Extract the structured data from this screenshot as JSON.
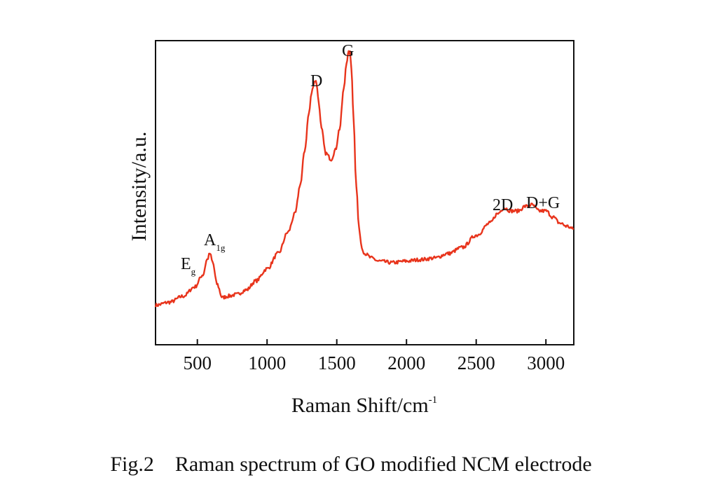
{
  "caption": "Fig.2    Raman spectrum of GO modified NCM electrode",
  "chart_data": {
    "type": "line",
    "xlabel": "Raman Shift/cm",
    "xlabel_sup": "-1",
    "ylabel": "Intensity/a.u.",
    "xlim": [
      200,
      3200
    ],
    "ylim": [
      0,
      1.0
    ],
    "y_ticks_shown": false,
    "x_ticks": [
      500,
      1000,
      1500,
      2000,
      2500,
      3000
    ],
    "color": "#e8341c",
    "grid": false,
    "legend": "none",
    "series": [
      {
        "x": [
          200,
          300,
          400,
          480,
          540,
          570,
          590,
          610,
          640,
          680,
          720,
          780,
          850,
          920,
          1000,
          1080,
          1150,
          1200,
          1240,
          1270,
          1300,
          1320,
          1335,
          1345,
          1355,
          1370,
          1390,
          1420,
          1460,
          1490,
          1520,
          1550,
          1570,
          1585,
          1595,
          1605,
          1620,
          1640,
          1660,
          1680,
          1700,
          1750,
          1800,
          1900,
          2000,
          2100,
          2200,
          2300,
          2400,
          2500,
          2600,
          2650,
          2700,
          2750,
          2800,
          2850,
          2900,
          2950,
          3000,
          3050,
          3100,
          3150,
          3200
        ],
        "y": [
          0.13,
          0.14,
          0.16,
          0.19,
          0.23,
          0.28,
          0.3,
          0.27,
          0.2,
          0.155,
          0.16,
          0.165,
          0.18,
          0.21,
          0.25,
          0.3,
          0.37,
          0.43,
          0.53,
          0.64,
          0.76,
          0.83,
          0.86,
          0.87,
          0.86,
          0.8,
          0.71,
          0.63,
          0.61,
          0.64,
          0.71,
          0.84,
          0.93,
          0.96,
          0.96,
          0.91,
          0.75,
          0.52,
          0.38,
          0.32,
          0.3,
          0.285,
          0.275,
          0.27,
          0.275,
          0.28,
          0.285,
          0.3,
          0.32,
          0.36,
          0.4,
          0.43,
          0.45,
          0.44,
          0.44,
          0.455,
          0.46,
          0.44,
          0.44,
          0.42,
          0.4,
          0.39,
          0.38
        ]
      }
    ],
    "annotations": [
      {
        "text": "E",
        "sub": "g",
        "x": 265
      },
      {
        "text": "A",
        "sub": "1g",
        "x": 625
      },
      {
        "text": "D",
        "x": 1350
      },
      {
        "text": "G",
        "x": 1590
      },
      {
        "text": "2D",
        "x": 2700
      },
      {
        "text": "D+G",
        "x": 2930
      }
    ]
  }
}
